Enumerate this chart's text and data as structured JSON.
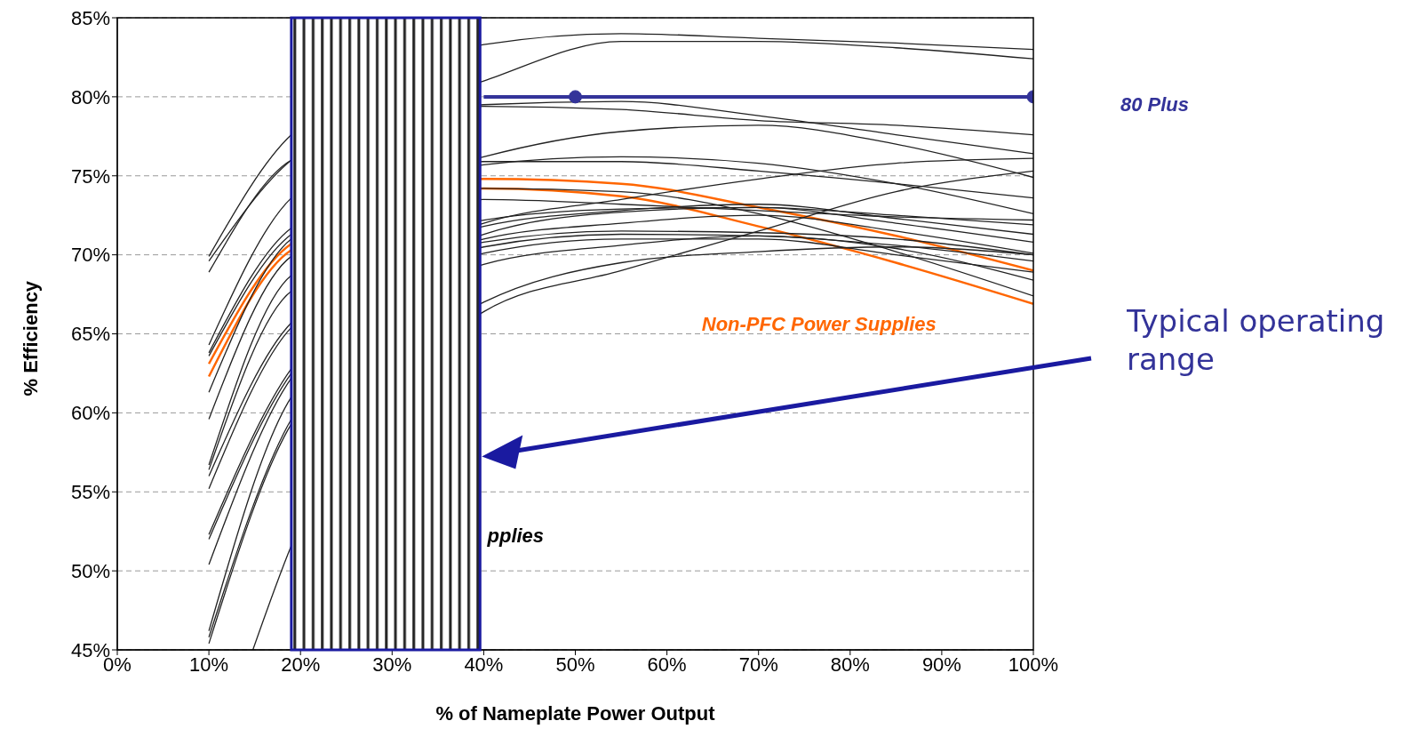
{
  "chart_data": {
    "type": "line",
    "xlabel": "% of Nameplate Power Output",
    "ylabel": "% Efficiency",
    "x": [
      10,
      19,
      40,
      55,
      70,
      85,
      100
    ],
    "xlim": [
      0,
      100
    ],
    "xticks": [
      {
        "value": 0,
        "label": "0%"
      },
      {
        "value": 10,
        "label": "10%"
      },
      {
        "value": 20,
        "label": "20%"
      },
      {
        "value": 30,
        "label": "30%"
      },
      {
        "value": 40,
        "label": "40%"
      },
      {
        "value": 50,
        "label": "50%"
      },
      {
        "value": 60,
        "label": "60%"
      },
      {
        "value": 70,
        "label": "70%"
      },
      {
        "value": 80,
        "label": "80%"
      },
      {
        "value": 90,
        "label": "90%"
      },
      {
        "value": 100,
        "label": "100%"
      }
    ],
    "ylim": [
      45,
      85
    ],
    "yticks": [
      {
        "value": 45,
        "label": "45%"
      },
      {
        "value": 50,
        "label": "50%"
      },
      {
        "value": 55,
        "label": "55%"
      },
      {
        "value": 60,
        "label": "60%"
      },
      {
        "value": 65,
        "label": "65%"
      },
      {
        "value": 70,
        "label": "70%"
      },
      {
        "value": 75,
        "label": "75%"
      },
      {
        "value": 80,
        "label": "80%"
      },
      {
        "value": 85,
        "label": "85%"
      }
    ],
    "grid": "y",
    "marker": "none",
    "line_style": "solid",
    "series": [
      {
        "color": "#222222",
        "values": [
          69.9,
          77.6,
          83.3,
          84.0,
          83.7,
          83.4,
          83.0
        ]
      },
      {
        "color": "#222222",
        "values": [
          69.6,
          76.0,
          81.0,
          83.5,
          83.5,
          83.1,
          82.4
        ]
      },
      {
        "color": "#222222",
        "values": [
          68.9,
          76.0,
          79.5,
          79.7,
          78.8,
          77.6,
          76.4
        ]
      },
      {
        "color": "#222222",
        "values": [
          64.3,
          73.6,
          79.4,
          79.2,
          78.5,
          78.2,
          77.6
        ]
      },
      {
        "color": "#222222",
        "values": [
          63.8,
          71.7,
          76.2,
          77.8,
          78.2,
          77.0,
          74.9
        ]
      },
      {
        "color": "#ff6600",
        "values": [
          63.1,
          70.7,
          74.8,
          74.5,
          73.0,
          71.2,
          69.0
        ]
      },
      {
        "color": "#ff6600",
        "values": [
          62.3,
          70.3,
          74.2,
          73.7,
          71.8,
          69.5,
          66.9
        ]
      },
      {
        "color": "#222222",
        "values": [
          63.6,
          71.3,
          75.9,
          75.9,
          75.3,
          74.5,
          73.6
        ]
      },
      {
        "color": "#222222",
        "values": [
          61.3,
          71.0,
          75.7,
          76.2,
          75.8,
          74.5,
          72.6
        ]
      },
      {
        "color": "#222222",
        "values": [
          59.6,
          69.9,
          74.2,
          74.0,
          72.6,
          70.2,
          67.4
        ]
      },
      {
        "color": "#222222",
        "values": [
          56.7,
          68.7,
          73.5,
          73.2,
          72.8,
          72.4,
          72.2
        ]
      },
      {
        "color": "#222222",
        "values": [
          56.4,
          67.7,
          72.2,
          72.9,
          73.0,
          72.5,
          71.9
        ]
      },
      {
        "color": "#222222",
        "values": [
          56.0,
          65.7,
          72.0,
          73.5,
          74.8,
          75.8,
          76.1
        ]
      },
      {
        "color": "#222222",
        "values": [
          55.2,
          65.4,
          71.8,
          72.8,
          73.2,
          72.3,
          71.3
        ]
      },
      {
        "color": "#222222",
        "values": [
          52.3,
          62.8,
          71.3,
          72.7,
          73.0,
          72.0,
          70.8
        ]
      },
      {
        "color": "#222222",
        "values": [
          52.0,
          62.5,
          71.0,
          72.0,
          72.5,
          71.5,
          70.1
        ]
      },
      {
        "color": "#222222",
        "values": [
          50.4,
          62.2,
          70.8,
          71.5,
          71.4,
          71.0,
          70.0
        ]
      },
      {
        "color": "#222222",
        "values": [
          46.2,
          61.0,
          70.5,
          71.3,
          71.2,
          70.6,
          69.6
        ]
      },
      {
        "color": "#222222",
        "values": [
          45.8,
          59.6,
          70.1,
          71.0,
          71.0,
          70.0,
          68.9
        ]
      },
      {
        "color": "#222222",
        "values": [
          45.4,
          59.3,
          69.4,
          70.6,
          71.2,
          70.4,
          68.4
        ]
      },
      {
        "color": "#222222",
        "values": [
          null,
          57.5,
          67.0,
          69.5,
          70.2,
          70.5,
          70.0
        ]
      },
      {
        "color": "#222222",
        "x": [
          14.8,
          19,
          40,
          55,
          70,
          85,
          100
        ],
        "values": [
          45.0,
          51.6,
          66.4,
          69.0,
          71.5,
          74.0,
          75.3
        ]
      },
      {
        "name": "80 Plus",
        "color": "#333399",
        "x": [
          40,
          50,
          100
        ],
        "values": [
          80,
          80,
          80
        ],
        "marker": "circle"
      }
    ],
    "bands": [
      {
        "axis": "x",
        "from": 19,
        "to": 39.6,
        "label": "Typical operating range",
        "color": "#1a1aa0"
      }
    ],
    "annotations": [
      "Non-PFC Power Supplies",
      "pplies"
    ]
  }
}
